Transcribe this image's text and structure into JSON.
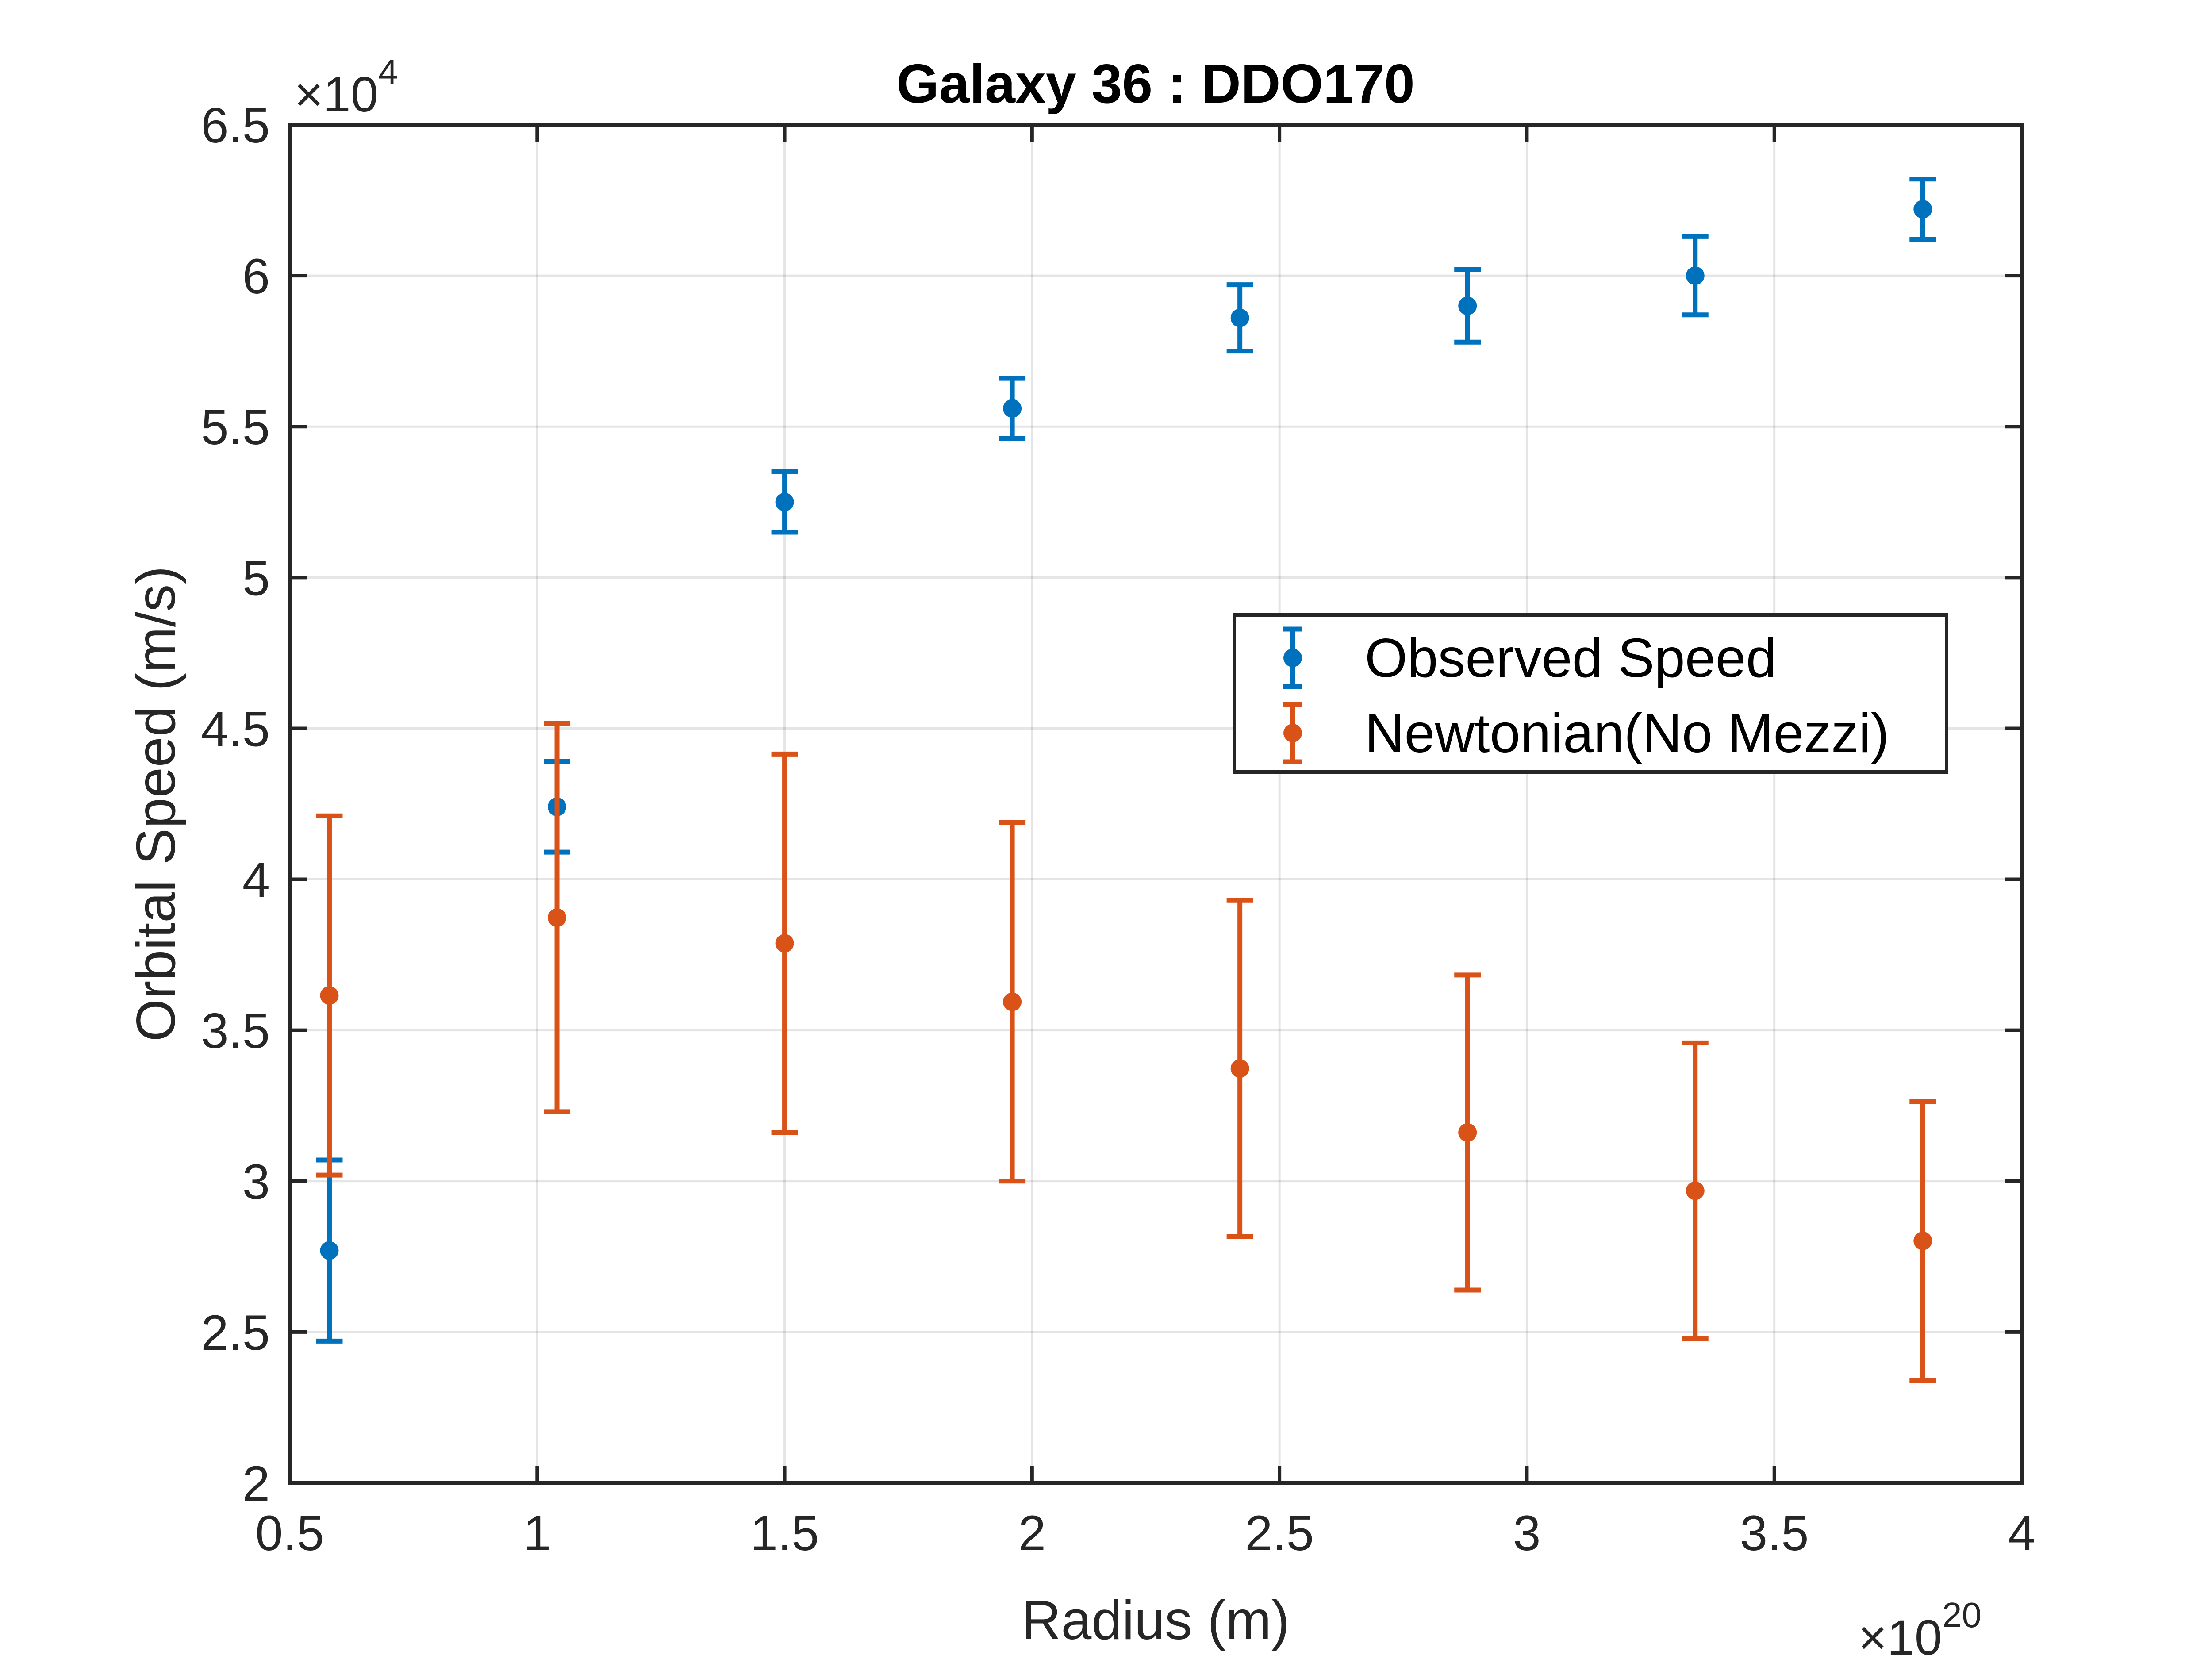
{
  "chart_data": {
    "type": "scatter",
    "title": "Galaxy 36 : DDO170",
    "xlabel": "Radius (m)",
    "ylabel": "Orbital Speed (m/s)",
    "x_multiplier": {
      "base": "×10",
      "exponent": "20"
    },
    "y_multiplier": {
      "base": "×10",
      "exponent": "4"
    },
    "xlim": [
      0.5,
      4
    ],
    "ylim": [
      2,
      6.5
    ],
    "xticks": [
      0.5,
      1,
      1.5,
      2,
      2.5,
      3,
      3.5,
      4
    ],
    "xtick_labels": [
      "0.5",
      "1",
      "1.5",
      "2",
      "2.5",
      "3",
      "3.5",
      "4"
    ],
    "yticks": [
      2,
      2.5,
      3,
      3.5,
      4,
      4.5,
      5,
      5.5,
      6,
      6.5
    ],
    "ytick_labels": [
      "2",
      "2.5",
      "3",
      "3.5",
      "4",
      "4.5",
      "5",
      "5.5",
      "6",
      "6.5"
    ],
    "grid": true,
    "legend_position": "right-center",
    "series": [
      {
        "name": "Observed Speed",
        "color": "#0072BD",
        "x": [
          0.58,
          1.04,
          1.5,
          1.96,
          2.42,
          2.88,
          3.34,
          3.8
        ],
        "y": [
          2.77,
          4.24,
          5.25,
          5.56,
          5.86,
          5.9,
          6.0,
          6.22
        ],
        "err": [
          0.3,
          0.15,
          0.1,
          0.1,
          0.11,
          0.12,
          0.13,
          0.1
        ]
      },
      {
        "name": "Newtonian(No Mezzi)",
        "color": "#D95319",
        "x": [
          0.58,
          1.04,
          1.5,
          1.96,
          2.42,
          2.88,
          3.34,
          3.8
        ],
        "y": [
          3.615,
          3.873,
          3.788,
          3.594,
          3.373,
          3.161,
          2.968,
          2.802
        ],
        "err": [
          0.595,
          0.643,
          0.627,
          0.594,
          0.557,
          0.522,
          0.49,
          0.462
        ]
      }
    ]
  }
}
